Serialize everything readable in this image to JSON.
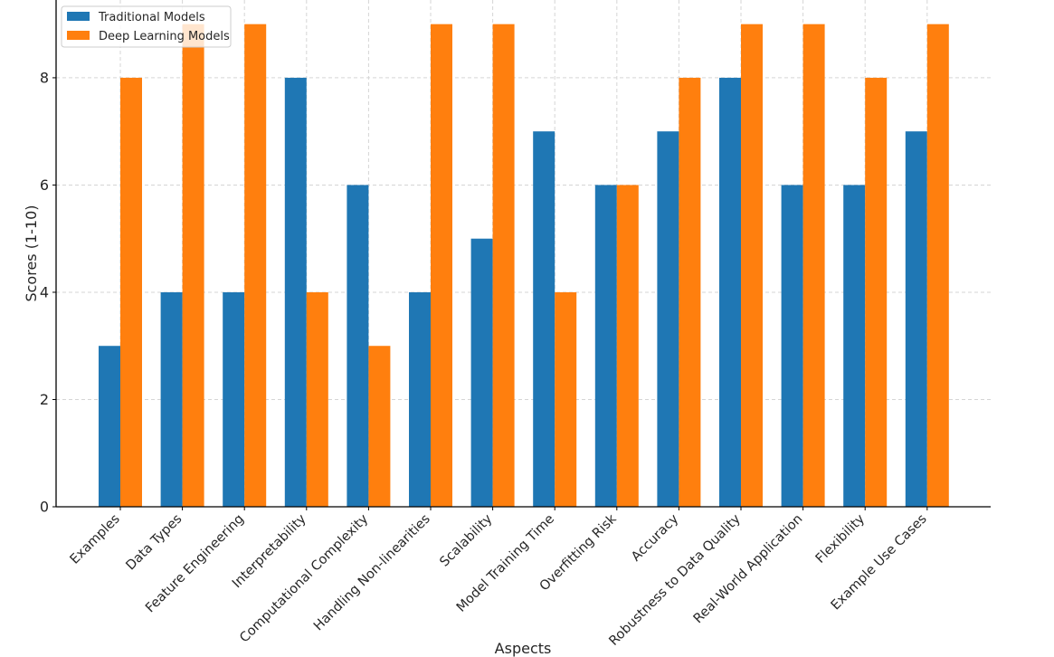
{
  "chart_data": {
    "type": "bar",
    "title": "",
    "xlabel": "Aspects",
    "ylabel": "Scores (1-10)",
    "ylim": [
      0,
      9.45
    ],
    "yticks": [
      0,
      2,
      4,
      6,
      8
    ],
    "grid": true,
    "legend_position": "top-left",
    "categories": [
      "Examples",
      "Data Types",
      "Feature Engineering",
      "Interpretability",
      "Computational Complexity",
      "Handling Non-linearities",
      "Scalability",
      "Model Training Time",
      "Overfitting Risk",
      "Accuracy",
      "Robustness to Data Quality",
      "Real-World Application",
      "Flexibility",
      "Example Use Cases"
    ],
    "series": [
      {
        "name": "Traditional Models",
        "color": "#1f77b4",
        "values": [
          3,
          4,
          4,
          8,
          6,
          4,
          5,
          7,
          6,
          7,
          8,
          6,
          6,
          7
        ]
      },
      {
        "name": "Deep Learning Models",
        "color": "#ff7f0e",
        "values": [
          8,
          9,
          9,
          4,
          3,
          9,
          9,
          4,
          6,
          8,
          9,
          9,
          8,
          9
        ]
      }
    ]
  }
}
